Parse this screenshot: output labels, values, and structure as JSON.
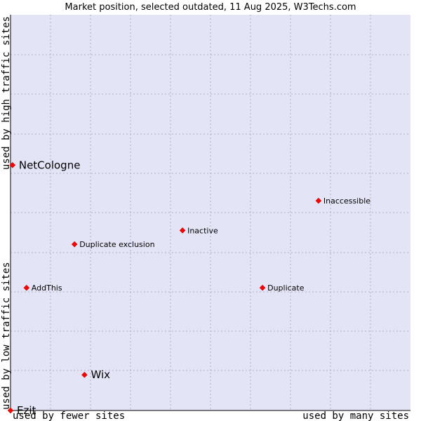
{
  "chart_data": {
    "type": "scatter",
    "title": "Market position, selected outdated, 11 Aug 2025, W3Techs.com",
    "x_axis_low_label": "used by fewer sites",
    "x_axis_high_label": "used by many sites",
    "y_axis_low_label": "used by low traffic sites",
    "y_axis_high_label": "used by high traffic sites",
    "xlim": [
      0,
      1
    ],
    "ylim": [
      0,
      1
    ],
    "grid": true,
    "points": [
      {
        "label": "NetCologne",
        "x": 0.005,
        "y": 0.62,
        "emphasis": true
      },
      {
        "label": "Inaccessible",
        "x": 0.77,
        "y": 0.53,
        "emphasis": false
      },
      {
        "label": "Inactive",
        "x": 0.43,
        "y": 0.455,
        "emphasis": false
      },
      {
        "label": "Duplicate exclusion",
        "x": 0.16,
        "y": 0.42,
        "emphasis": false
      },
      {
        "label": "AddThis",
        "x": 0.04,
        "y": 0.31,
        "emphasis": false
      },
      {
        "label": "Duplicate",
        "x": 0.63,
        "y": 0.31,
        "emphasis": false
      },
      {
        "label": "Wix",
        "x": 0.185,
        "y": 0.09,
        "emphasis": true
      },
      {
        "label": "Ezit",
        "x": 0.0,
        "y": 0.0,
        "emphasis": true
      }
    ]
  },
  "colors": {
    "plot_background": "#e3e5f7",
    "grid": "#b0b0c0",
    "marker": "#ff0000",
    "axis": "#000000"
  }
}
